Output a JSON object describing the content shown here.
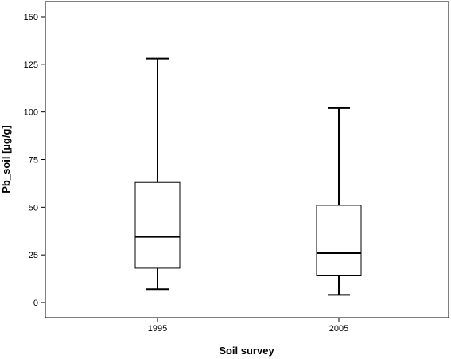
{
  "chart_data": {
    "type": "boxplot",
    "title": "",
    "xlabel": "Soil survey",
    "ylabel": "Pb_soil [µg/g]",
    "ylim": [
      -8,
      156
    ],
    "yticks": [
      0,
      25,
      50,
      75,
      100,
      125,
      150
    ],
    "ytick_labels": [
      "0",
      "25",
      "50",
      "75",
      "100",
      "125",
      "150"
    ],
    "grid": false,
    "legend": "none",
    "categories": [
      "1995",
      "2005"
    ],
    "boxes": [
      {
        "category": "1995",
        "min": 7,
        "q1": 18,
        "median": 34.5,
        "q3": 63,
        "max": 128
      },
      {
        "category": "2005",
        "min": 4,
        "q1": 14,
        "median": 26,
        "q3": 51,
        "max": 102
      }
    ]
  }
}
